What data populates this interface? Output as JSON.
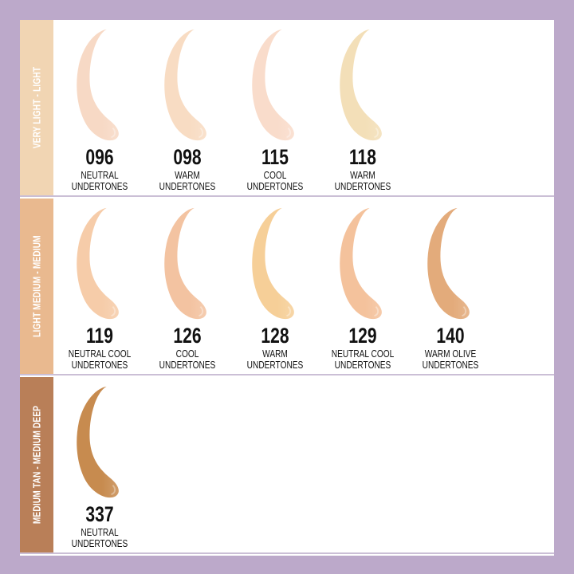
{
  "rows": [
    {
      "label": "VERY LIGHT - LIGHT",
      "color": "#f1d5b3",
      "shades": [
        {
          "code": "096",
          "line1": "NEUTRAL",
          "line2": "UNDERTONES",
          "color": "#f7d9c5"
        },
        {
          "code": "098",
          "line1": "WARM",
          "line2": "UNDERTONES",
          "color": "#f8dcc3"
        },
        {
          "code": "115",
          "line1": "COOL",
          "line2": "UNDERTONES",
          "color": "#f9dccb"
        },
        {
          "code": "118",
          "line1": "WARM",
          "line2": "UNDERTONES",
          "color": "#f3dfb8"
        }
      ]
    },
    {
      "label": "LIGHT MEDIUM - MEDIUM",
      "color": "#e9b98f",
      "shades": [
        {
          "code": "119",
          "line1": "NEUTRAL COOL",
          "line2": "UNDERTONES",
          "color": "#f6cca9"
        },
        {
          "code": "126",
          "line1": "COOL",
          "line2": "UNDERTONES",
          "color": "#f3c3a1"
        },
        {
          "code": "128",
          "line1": "WARM",
          "line2": "UNDERTONES",
          "color": "#f6cf98"
        },
        {
          "code": "129",
          "line1": "NEUTRAL COOL",
          "line2": "UNDERTONES",
          "color": "#f4c29c"
        },
        {
          "code": "140",
          "line1": "WARM OLIVE",
          "line2": "UNDERTONES",
          "color": "#e3ab7b"
        }
      ]
    },
    {
      "label": "MEDIUM TAN - MEDIUM DEEP",
      "color": "#b97f58",
      "shades": [
        {
          "code": "337",
          "line1": "NEUTRAL",
          "line2": "UNDERTONES",
          "color": "#c78b4f"
        }
      ]
    }
  ]
}
